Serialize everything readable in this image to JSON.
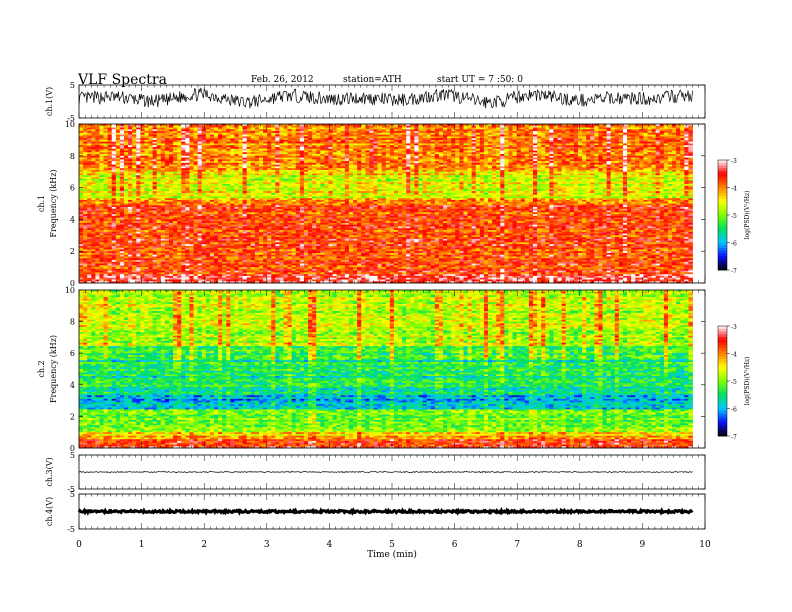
{
  "header": {
    "title": "VLF Spectra",
    "date": "Feb. 26, 2012",
    "station": "station=ATH",
    "start_ut": "start UT = 7 :50: 0"
  },
  "colors": {
    "spectrogram_scale": [
      "#000000",
      "#1010ff",
      "#00c8ff",
      "#00e060",
      "#80ff00",
      "#ffff00",
      "#ff8000",
      "#ff0000",
      "#ffffff"
    ],
    "trace": "#000000"
  },
  "chart_data": [
    {
      "type": "line",
      "panel": "ch1",
      "ylabel": "ch.1(V)",
      "ylim": [
        -5,
        5
      ],
      "yticks": [
        "5",
        "-5"
      ],
      "xlim": [
        0,
        10
      ],
      "series": [
        {
          "x_end": 9.8,
          "baseline": 1.0,
          "amplitude": 2.0
        }
      ]
    },
    {
      "type": "heatmap",
      "panel": "ch1-spectrogram",
      "ylabel": "ch.1\nFrequency (kHz)",
      "ylim": [
        0,
        10
      ],
      "yticks": [
        "0",
        "2",
        "4",
        "6",
        "8",
        "10"
      ],
      "xlim": [
        0,
        10
      ],
      "x_end": 9.8,
      "bands_khz": [
        {
          "from": 0,
          "to": 0.6,
          "level": -3.3
        },
        {
          "from": 0.6,
          "to": 4.9,
          "level": -3.8
        },
        {
          "from": 4.9,
          "to": 5.3,
          "level": -4.1
        },
        {
          "from": 5.3,
          "to": 7.0,
          "level": -4.8
        },
        {
          "from": 7.0,
          "to": 10,
          "level": -4.2
        }
      ],
      "colorbar": {
        "label": "log(PSD)(V²/Hz)",
        "min": -7,
        "max": -3,
        "ticks": [
          "-3",
          "-4",
          "-5",
          "-6",
          "-7"
        ]
      }
    },
    {
      "type": "heatmap",
      "panel": "ch2-spectrogram",
      "ylabel": "ch.2\nFrequency (kHz)",
      "ylim": [
        0,
        10
      ],
      "yticks": [
        "0",
        "2",
        "4",
        "6",
        "8",
        "10"
      ],
      "xlim": [
        0,
        10
      ],
      "x_end": 9.8,
      "bands_khz": [
        {
          "from": 0,
          "to": 0.6,
          "level": -3.8
        },
        {
          "from": 0.6,
          "to": 1.0,
          "level": -4.4
        },
        {
          "from": 1.0,
          "to": 2.5,
          "level": -5.2
        },
        {
          "from": 2.5,
          "to": 3.5,
          "level": -6.0
        },
        {
          "from": 3.5,
          "to": 6.5,
          "level": -5.6
        },
        {
          "from": 6.5,
          "to": 10,
          "level": -5.0
        }
      ],
      "colorbar": {
        "label": "log(PSD)(V²/Hz)",
        "min": -7,
        "max": -3,
        "ticks": [
          "-3",
          "-4",
          "-5",
          "-6",
          "-7"
        ]
      }
    },
    {
      "type": "line",
      "panel": "ch3",
      "ylabel": "ch.3(V)",
      "ylim": [
        -5,
        5
      ],
      "yticks": [
        "5",
        "-5"
      ],
      "xlim": [
        0,
        10
      ],
      "series": [
        {
          "x_end": 9.8,
          "baseline": 0.0,
          "amplitude": 0.15
        }
      ]
    },
    {
      "type": "line",
      "panel": "ch4",
      "ylabel": "ch.4(V)",
      "ylim": [
        -5,
        5
      ],
      "yticks": [
        "5",
        "-5"
      ],
      "xlim": [
        0,
        10
      ],
      "series": [
        {
          "x_end": 9.8,
          "baseline": 0.0,
          "amplitude": 0.3
        }
      ]
    }
  ],
  "xaxis": {
    "label": "Time (min)",
    "ticks": [
      "0",
      "1",
      "2",
      "3",
      "4",
      "5",
      "6",
      "7",
      "8",
      "9",
      "10"
    ]
  }
}
